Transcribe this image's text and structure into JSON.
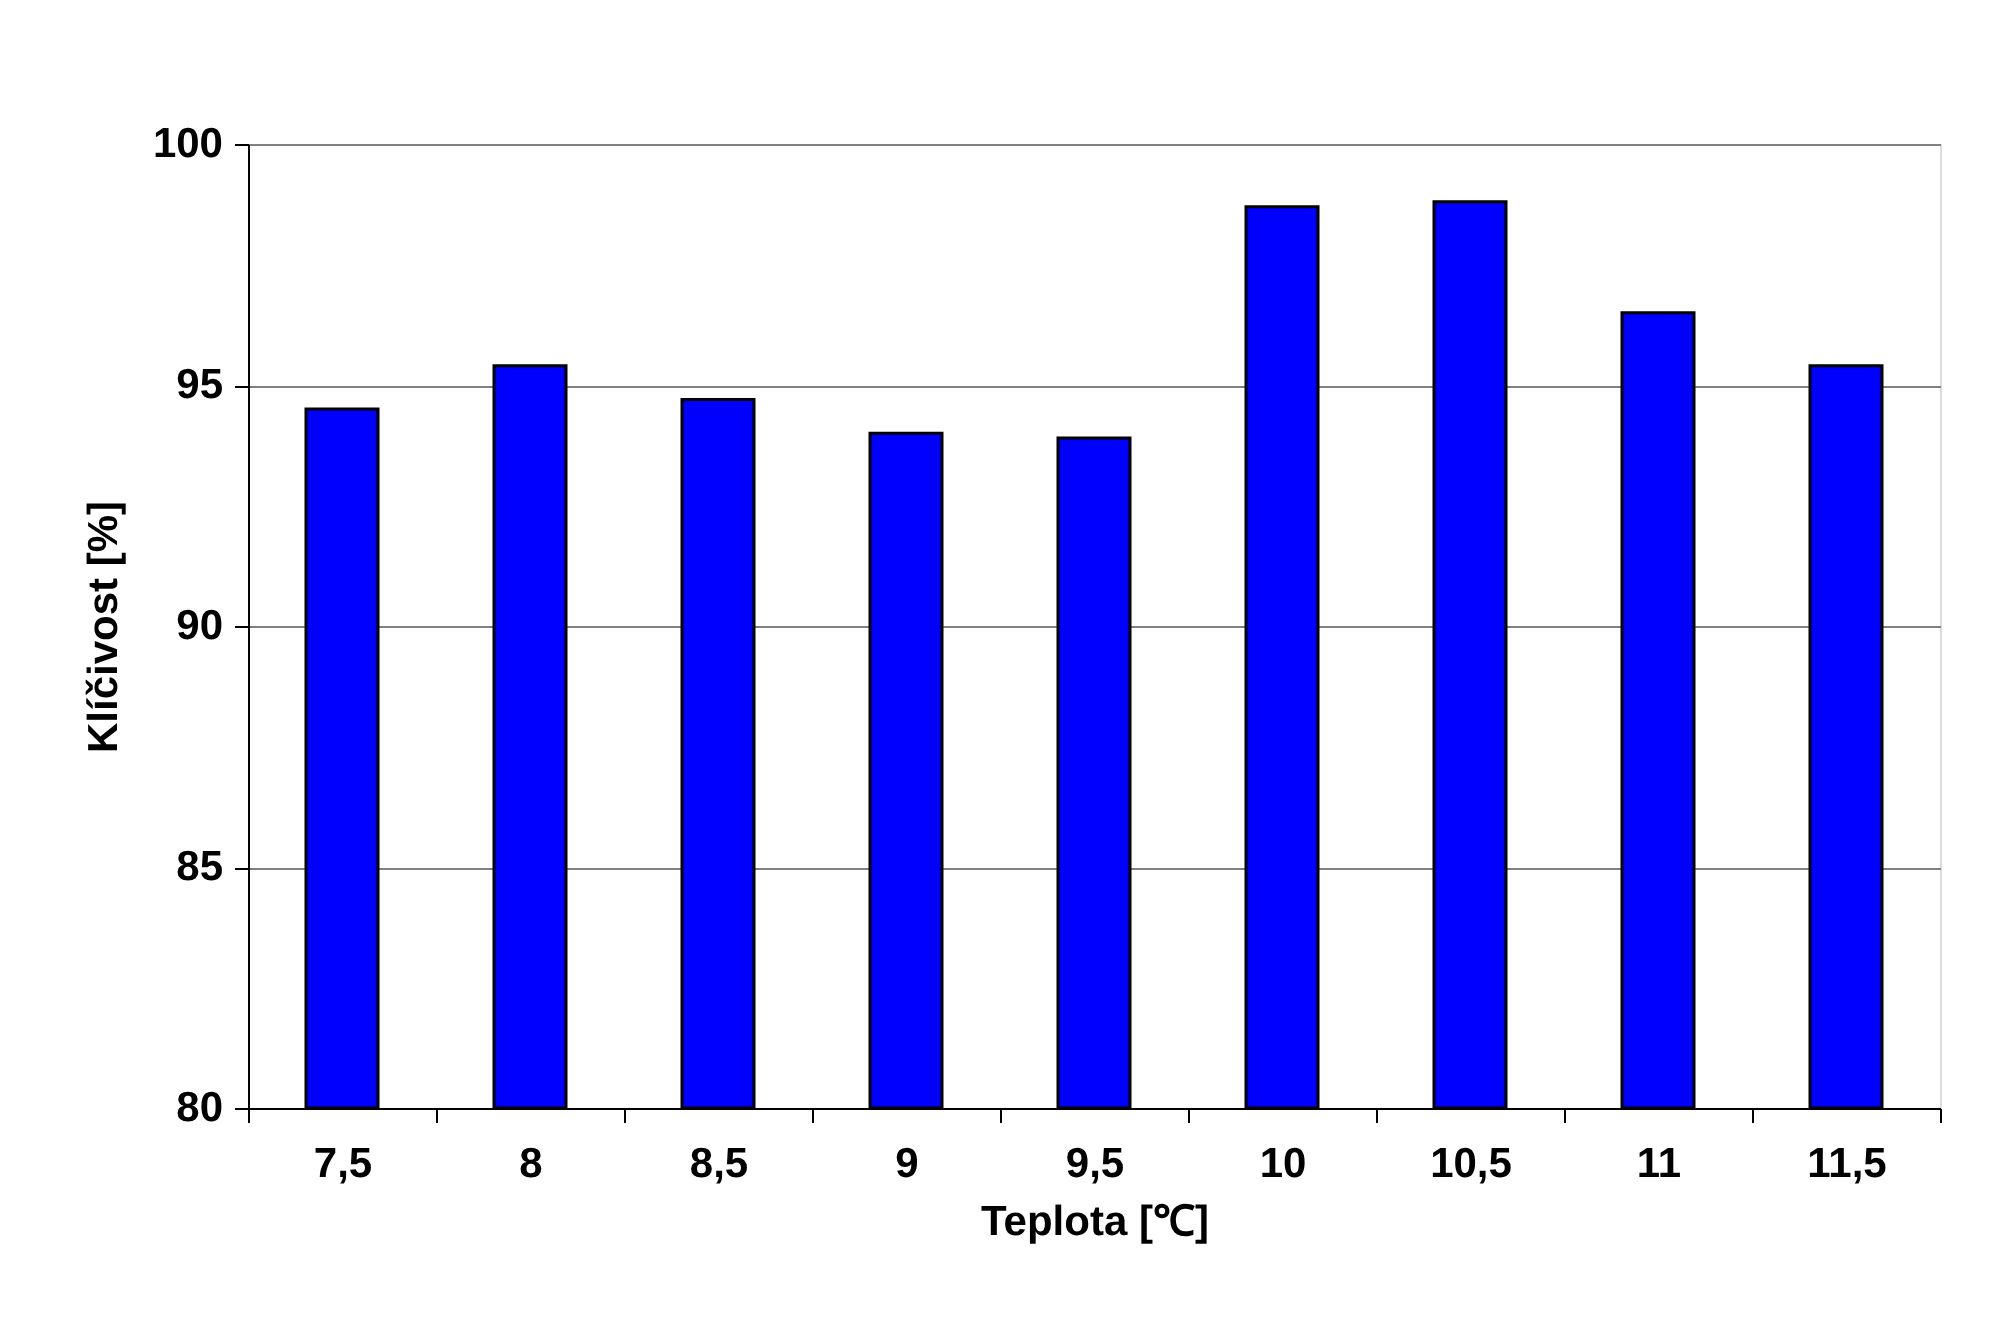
{
  "chart_data": {
    "type": "bar",
    "xlabel": "Teplota [℃]",
    "ylabel": "Klíčivost [%]",
    "categories": [
      "7,5",
      "8",
      "8,5",
      "9",
      "9,5",
      "10",
      "10,5",
      "11",
      "11,5"
    ],
    "values": [
      94.5,
      95.4,
      94.7,
      94.0,
      93.9,
      98.7,
      98.8,
      96.5,
      95.4
    ],
    "color": "#0000ff",
    "ylim": [
      80,
      100
    ],
    "yticks": [
      80,
      85,
      90,
      95,
      100
    ],
    "grid": "y"
  }
}
